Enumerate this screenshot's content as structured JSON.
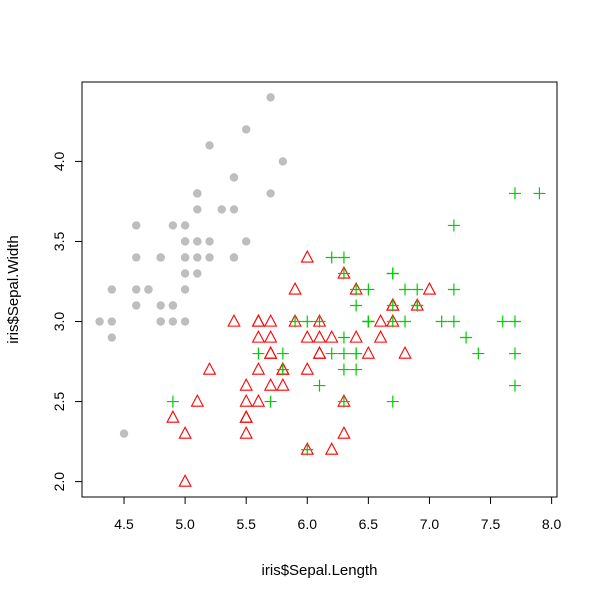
{
  "chart_data": {
    "type": "scatter",
    "title": "",
    "xlabel": "iris$Sepal.Length",
    "ylabel": "iris$Sepal.Width",
    "xlim": [
      4.3,
      7.9
    ],
    "ylim": [
      2.0,
      4.4
    ],
    "xticks": [
      4.5,
      5.0,
      5.5,
      6.0,
      6.5,
      7.0,
      7.5,
      8.0
    ],
    "xtick_labels": [
      "4.5",
      "5.0",
      "5.5",
      "6.0",
      "6.5",
      "7.0",
      "7.5",
      "8.0"
    ],
    "yticks": [
      2.0,
      2.5,
      3.0,
      3.5,
      4.0
    ],
    "ytick_labels": [
      "2.0",
      "2.5",
      "3.0",
      "3.5",
      "4.0"
    ],
    "grid": false,
    "legend": "none",
    "series": [
      {
        "marker": "filled-circle",
        "color": "#bebebe",
        "points": [
          [
            5.1,
            3.5
          ],
          [
            4.9,
            3.0
          ],
          [
            4.7,
            3.2
          ],
          [
            4.6,
            3.1
          ],
          [
            5.0,
            3.6
          ],
          [
            5.4,
            3.9
          ],
          [
            4.6,
            3.4
          ],
          [
            5.0,
            3.4
          ],
          [
            4.4,
            2.9
          ],
          [
            4.9,
            3.1
          ],
          [
            5.4,
            3.7
          ],
          [
            4.8,
            3.4
          ],
          [
            4.8,
            3.0
          ],
          [
            4.3,
            3.0
          ],
          [
            5.8,
            4.0
          ],
          [
            5.7,
            4.4
          ],
          [
            5.4,
            3.9
          ],
          [
            5.1,
            3.5
          ],
          [
            5.7,
            3.8
          ],
          [
            5.1,
            3.8
          ],
          [
            5.4,
            3.4
          ],
          [
            5.1,
            3.7
          ],
          [
            4.6,
            3.6
          ],
          [
            5.1,
            3.3
          ],
          [
            4.8,
            3.4
          ],
          [
            5.0,
            3.0
          ],
          [
            5.0,
            3.4
          ],
          [
            5.2,
            3.5
          ],
          [
            5.2,
            3.4
          ],
          [
            4.7,
            3.2
          ],
          [
            4.8,
            3.1
          ],
          [
            5.4,
            3.4
          ],
          [
            5.2,
            4.1
          ],
          [
            5.5,
            4.2
          ],
          [
            4.9,
            3.1
          ],
          [
            5.0,
            3.2
          ],
          [
            5.5,
            3.5
          ],
          [
            4.9,
            3.6
          ],
          [
            4.4,
            3.0
          ],
          [
            5.1,
            3.4
          ],
          [
            5.0,
            3.5
          ],
          [
            4.5,
            2.3
          ],
          [
            4.4,
            3.2
          ],
          [
            5.0,
            3.5
          ],
          [
            5.1,
            3.8
          ],
          [
            4.8,
            3.0
          ],
          [
            5.1,
            3.8
          ],
          [
            4.6,
            3.2
          ],
          [
            5.3,
            3.7
          ],
          [
            5.0,
            3.3
          ]
        ]
      },
      {
        "marker": "open-triangle",
        "color": "#ff0000",
        "points": [
          [
            7.0,
            3.2
          ],
          [
            6.4,
            3.2
          ],
          [
            6.9,
            3.1
          ],
          [
            5.5,
            2.3
          ],
          [
            6.5,
            2.8
          ],
          [
            5.7,
            2.8
          ],
          [
            6.3,
            3.3
          ],
          [
            4.9,
            2.4
          ],
          [
            6.6,
            2.9
          ],
          [
            5.2,
            2.7
          ],
          [
            5.0,
            2.0
          ],
          [
            5.9,
            3.0
          ],
          [
            6.0,
            2.2
          ],
          [
            6.1,
            2.9
          ],
          [
            5.6,
            2.9
          ],
          [
            6.7,
            3.1
          ],
          [
            5.6,
            3.0
          ],
          [
            5.8,
            2.7
          ],
          [
            6.2,
            2.2
          ],
          [
            5.6,
            2.5
          ],
          [
            5.9,
            3.2
          ],
          [
            6.1,
            2.8
          ],
          [
            6.3,
            2.5
          ],
          [
            6.1,
            2.8
          ],
          [
            6.4,
            2.9
          ],
          [
            6.6,
            3.0
          ],
          [
            6.8,
            2.8
          ],
          [
            6.7,
            3.0
          ],
          [
            6.0,
            2.9
          ],
          [
            5.7,
            2.6
          ],
          [
            5.5,
            2.4
          ],
          [
            5.5,
            2.4
          ],
          [
            5.8,
            2.7
          ],
          [
            6.0,
            2.7
          ],
          [
            5.4,
            3.0
          ],
          [
            6.0,
            3.4
          ],
          [
            6.7,
            3.1
          ],
          [
            6.3,
            2.3
          ],
          [
            5.6,
            3.0
          ],
          [
            5.5,
            2.5
          ],
          [
            5.5,
            2.6
          ],
          [
            6.1,
            3.0
          ],
          [
            5.8,
            2.6
          ],
          [
            5.0,
            2.3
          ],
          [
            5.6,
            2.7
          ],
          [
            5.7,
            3.0
          ],
          [
            5.7,
            2.9
          ],
          [
            6.2,
            2.9
          ],
          [
            5.1,
            2.5
          ],
          [
            5.7,
            2.8
          ]
        ]
      },
      {
        "marker": "plus",
        "color": "#00cd00",
        "points": [
          [
            6.3,
            3.3
          ],
          [
            5.8,
            2.7
          ],
          [
            7.1,
            3.0
          ],
          [
            6.3,
            2.9
          ],
          [
            6.5,
            3.0
          ],
          [
            7.6,
            3.0
          ],
          [
            4.9,
            2.5
          ],
          [
            7.3,
            2.9
          ],
          [
            6.7,
            2.5
          ],
          [
            7.2,
            3.6
          ],
          [
            6.5,
            3.2
          ],
          [
            6.4,
            2.7
          ],
          [
            6.8,
            3.0
          ],
          [
            5.7,
            2.5
          ],
          [
            5.8,
            2.8
          ],
          [
            6.4,
            3.2
          ],
          [
            6.5,
            3.0
          ],
          [
            7.7,
            3.8
          ],
          [
            7.7,
            2.6
          ],
          [
            6.0,
            2.2
          ],
          [
            6.9,
            3.2
          ],
          [
            5.6,
            2.8
          ],
          [
            7.7,
            2.8
          ],
          [
            6.3,
            2.7
          ],
          [
            6.7,
            3.3
          ],
          [
            7.2,
            3.2
          ],
          [
            6.2,
            2.8
          ],
          [
            6.1,
            3.0
          ],
          [
            6.4,
            2.8
          ],
          [
            7.2,
            3.0
          ],
          [
            7.4,
            2.8
          ],
          [
            7.9,
            3.8
          ],
          [
            6.4,
            2.8
          ],
          [
            6.3,
            2.8
          ],
          [
            6.1,
            2.6
          ],
          [
            7.7,
            3.0
          ],
          [
            6.3,
            3.4
          ],
          [
            6.4,
            3.1
          ],
          [
            6.0,
            3.0
          ],
          [
            6.9,
            3.1
          ],
          [
            6.7,
            3.1
          ],
          [
            6.9,
            3.1
          ],
          [
            5.8,
            2.7
          ],
          [
            6.8,
            3.2
          ],
          [
            6.7,
            3.3
          ],
          [
            6.7,
            3.0
          ],
          [
            6.3,
            2.5
          ],
          [
            6.5,
            3.0
          ],
          [
            6.2,
            3.4
          ],
          [
            5.9,
            3.0
          ]
        ]
      }
    ]
  }
}
